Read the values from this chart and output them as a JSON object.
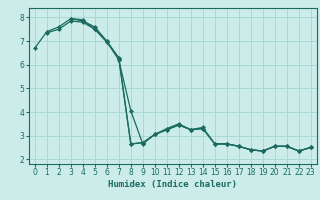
{
  "xlabel": "Humidex (Indice chaleur)",
  "ylabel": "",
  "background_color": "#ccecea",
  "grid_color": "#aad8d5",
  "line_color": "#1a6b60",
  "xlim": [
    -0.5,
    23.5
  ],
  "ylim": [
    1.8,
    8.4
  ],
  "yticks": [
    2,
    3,
    4,
    5,
    6,
    7,
    8
  ],
  "xticks": [
    0,
    1,
    2,
    3,
    4,
    5,
    6,
    7,
    8,
    9,
    10,
    11,
    12,
    13,
    14,
    15,
    16,
    17,
    18,
    19,
    20,
    21,
    22,
    23
  ],
  "lines": [
    {
      "x": [
        0,
        1,
        2,
        3,
        4,
        5,
        6,
        7,
        8,
        9,
        10,
        11,
        12,
        13,
        14,
        15,
        16,
        17,
        18,
        19,
        20,
        21,
        22,
        23
      ],
      "y": [
        6.7,
        7.4,
        7.6,
        7.95,
        7.85,
        7.6,
        7.0,
        6.3,
        2.65,
        2.7,
        3.05,
        3.25,
        3.45,
        3.25,
        3.3,
        2.65,
        2.65,
        2.55,
        2.4,
        2.35,
        2.55,
        2.55,
        2.35,
        2.5
      ]
    },
    {
      "x": [
        1,
        2,
        3,
        4,
        5,
        6,
        7,
        8,
        9,
        10,
        11,
        12,
        13,
        14,
        15,
        16,
        17,
        18,
        19,
        20,
        21,
        22,
        23
      ],
      "y": [
        7.35,
        7.5,
        7.85,
        7.8,
        7.5,
        7.0,
        6.2,
        4.05,
        2.65,
        3.05,
        3.25,
        3.45,
        3.25,
        3.3,
        2.65,
        2.65,
        2.55,
        2.4,
        2.35,
        2.55,
        2.55,
        2.35,
        2.5
      ]
    },
    {
      "x": [
        3,
        4,
        5,
        6,
        7,
        8,
        9,
        10,
        11,
        12,
        13,
        14,
        15,
        16,
        17,
        18,
        19,
        20,
        21,
        22,
        23
      ],
      "y": [
        7.95,
        7.9,
        7.5,
        6.95,
        6.25,
        2.65,
        2.7,
        3.05,
        3.3,
        3.5,
        3.25,
        3.35,
        2.65,
        2.65,
        2.55,
        2.4,
        2.35,
        2.55,
        2.55,
        2.35,
        2.5
      ]
    }
  ]
}
